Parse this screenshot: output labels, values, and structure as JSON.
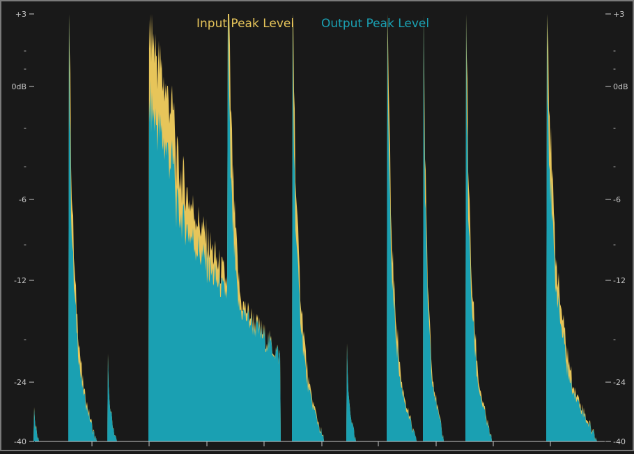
{
  "meter": {
    "legend": {
      "input_label": "Input Peak Level",
      "output_label": "Output Peak Level",
      "input_color": "#e7c55a",
      "output_color": "#1aa0b2"
    },
    "scale": {
      "unit_label": "0dB",
      "ticks": [
        {
          "label": "+3",
          "db": 3
        },
        {
          "label": "-",
          "db": 1.5
        },
        {
          "label": "-",
          "db": 0.75
        },
        {
          "label": "0dB",
          "db": 0
        },
        {
          "label": "-",
          "db": -1.5
        },
        {
          "label": "-",
          "db": -3
        },
        {
          "label": "-6",
          "db": -6
        },
        {
          "label": "-",
          "db": -9
        },
        {
          "label": "-12",
          "db": -12
        },
        {
          "label": "-",
          "db": -18
        },
        {
          "label": "-24",
          "db": -24
        },
        {
          "label": "-40",
          "db": -40
        }
      ]
    },
    "background_color": "#191919",
    "frame_color": "#9a9a9a"
  }
}
